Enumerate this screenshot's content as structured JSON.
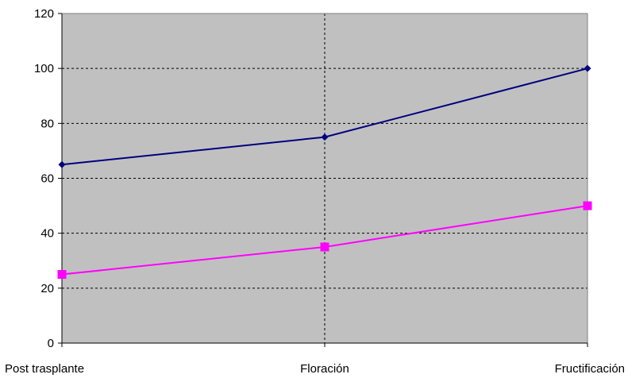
{
  "chart_data": {
    "type": "line",
    "title": "",
    "xlabel": "",
    "ylabel": "",
    "categories": [
      "Post trasplante",
      "Floración",
      "Fructificación"
    ],
    "ylim": [
      0,
      120
    ],
    "yticks": [
      0,
      20,
      40,
      60,
      80,
      100,
      120
    ],
    "grid": {
      "horizontal": true,
      "vertical": true,
      "style": "dashed"
    },
    "legend": "none",
    "background_color": "#c0c0c0",
    "series": [
      {
        "values": [
          65,
          75,
          100
        ],
        "color": "#000080",
        "marker": "diamond"
      },
      {
        "values": [
          25,
          35,
          50
        ],
        "color": "#ff00ff",
        "marker": "square"
      }
    ]
  }
}
